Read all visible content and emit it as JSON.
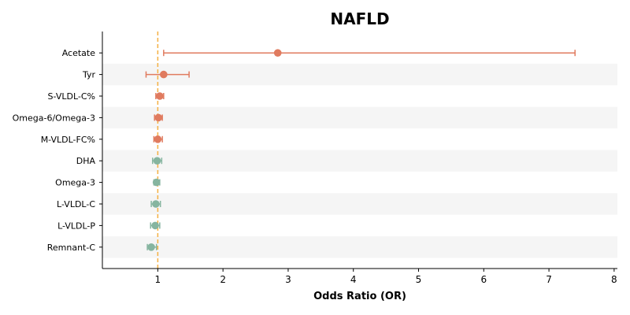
{
  "chart_data": {
    "type": "forest",
    "title": "NAFLD",
    "xlabel": "Odds Ratio (OR)",
    "xlim": [
      0.15,
      8.05
    ],
    "xticks": [
      1,
      2,
      3,
      4,
      5,
      6,
      7,
      8
    ],
    "reference_line": 1,
    "grid": false,
    "colors": {
      "risk": "#e07b5f",
      "protective": "#86b5a0",
      "reference": "#f5b041",
      "band": "#f5f5f5",
      "axis": "#000000"
    },
    "rows": [
      {
        "label": "Acetate",
        "or": 2.84,
        "lo": 1.09,
        "hi": 7.4,
        "group": "risk"
      },
      {
        "label": "Tyr",
        "or": 1.09,
        "lo": 0.82,
        "hi": 1.48,
        "group": "risk"
      },
      {
        "label": "S-VLDL-C%",
        "or": 1.03,
        "lo": 0.97,
        "hi": 1.09,
        "group": "risk"
      },
      {
        "label": "Omega-6/Omega-3",
        "or": 1.01,
        "lo": 0.95,
        "hi": 1.07,
        "group": "risk"
      },
      {
        "label": "M-VLDL-FC%",
        "or": 1.0,
        "lo": 0.94,
        "hi": 1.07,
        "group": "risk"
      },
      {
        "label": "DHA",
        "or": 0.99,
        "lo": 0.92,
        "hi": 1.06,
        "group": "protective"
      },
      {
        "label": "Omega-3",
        "or": 0.98,
        "lo": 0.94,
        "hi": 1.03,
        "group": "protective"
      },
      {
        "label": "L-VLDL-C",
        "or": 0.97,
        "lo": 0.9,
        "hi": 1.04,
        "group": "protective"
      },
      {
        "label": "L-VLDL-P",
        "or": 0.96,
        "lo": 0.89,
        "hi": 1.03,
        "group": "protective"
      },
      {
        "label": "Remnant-C",
        "or": 0.9,
        "lo": 0.84,
        "hi": 0.98,
        "group": "protective"
      }
    ]
  }
}
